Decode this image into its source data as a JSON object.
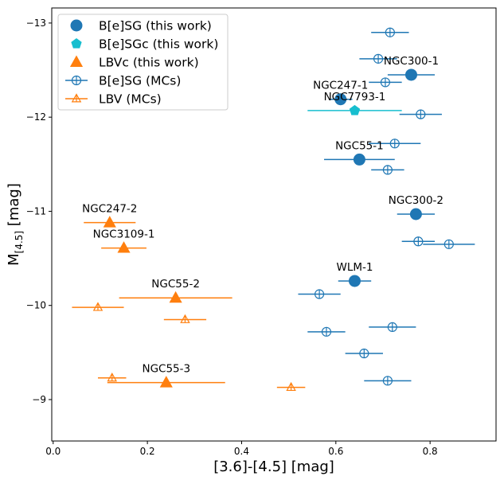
{
  "chart_data": {
    "type": "scatter",
    "xlabel": "[3.6]-[4.5] [mag]",
    "ylabel": "M",
    "ylabel_sub": "[4.5]",
    "ylabel_unit": " [mag]",
    "xlim": [
      -0.003,
      0.94
    ],
    "ylim": [
      -8.56,
      -13.16
    ],
    "xticks": [
      0.0,
      0.2,
      0.4,
      0.6,
      0.8
    ],
    "xtick_labels": [
      "0.0",
      "0.2",
      "0.4",
      "0.6",
      "0.8"
    ],
    "yticks": [
      -9,
      -10,
      -11,
      -12,
      -13
    ],
    "ytick_labels": [
      "−9",
      "−10",
      "−11",
      "−12",
      "−13"
    ],
    "grid": false,
    "legend_position": "top-left",
    "colors": {
      "blue": "#1f77b4",
      "orange": "#ff7f0e",
      "cyan": "#17becf"
    },
    "series": [
      {
        "name": "B[e]SG (this work)",
        "marker": "circle-filled",
        "color": "#1f77b4",
        "points": [
          {
            "label": "NGC300-1",
            "x": 0.76,
            "y": -12.45,
            "xerr": 0.05
          },
          {
            "label": "NGC247-1",
            "x": 0.61,
            "y": -12.19,
            "xerr": 0.025
          },
          {
            "label": "NGC55-1",
            "x": 0.65,
            "y": -11.55,
            "xerr": 0.075
          },
          {
            "label": "NGC300-2",
            "x": 0.77,
            "y": -10.97,
            "xerr": 0.04
          },
          {
            "label": "WLM-1",
            "x": 0.64,
            "y": -10.26,
            "xerr": 0.035
          }
        ]
      },
      {
        "name": "B[e]SGc (this work)",
        "marker": "pentagon-filled",
        "color": "#17becf",
        "points": [
          {
            "label": "NGC7793-1",
            "x": 0.64,
            "y": -12.07,
            "xerr": 0.1
          }
        ]
      },
      {
        "name": "LBVc (this work)",
        "marker": "triangle-filled",
        "color": "#ff7f0e",
        "points": [
          {
            "label": "NGC247-2",
            "x": 0.12,
            "y": -10.88,
            "xerr": 0.055
          },
          {
            "label": "NGC3109-1",
            "x": 0.15,
            "y": -10.61,
            "xerr": 0.048
          },
          {
            "label": "NGC55-2",
            "x": 0.26,
            "y": -10.08,
            "xerr": 0.12
          },
          {
            "label": "NGC55-3",
            "x": 0.24,
            "y": -9.18,
            "xerr": 0.125
          }
        ]
      },
      {
        "name": "B[e]SG (MCs)",
        "marker": "circle-open",
        "color": "#1f77b4",
        "points": [
          {
            "x": 0.715,
            "y": -12.9,
            "xerr": 0.04
          },
          {
            "x": 0.69,
            "y": -12.62,
            "xerr": 0.04
          },
          {
            "x": 0.705,
            "y": -12.37,
            "xerr": 0.035
          },
          {
            "x": 0.78,
            "y": -12.03,
            "xerr": 0.045
          },
          {
            "x": 0.725,
            "y": -11.72,
            "xerr": 0.055
          },
          {
            "x": 0.71,
            "y": -11.44,
            "xerr": 0.035
          },
          {
            "x": 0.775,
            "y": -10.68,
            "xerr": 0.035
          },
          {
            "x": 0.84,
            "y": -10.65,
            "xerr": 0.055
          },
          {
            "x": 0.565,
            "y": -10.12,
            "xerr": 0.045
          },
          {
            "x": 0.58,
            "y": -9.72,
            "xerr": 0.04
          },
          {
            "x": 0.72,
            "y": -9.77,
            "xerr": 0.05
          },
          {
            "x": 0.66,
            "y": -9.49,
            "xerr": 0.04
          },
          {
            "x": 0.71,
            "y": -9.2,
            "xerr": 0.05
          }
        ]
      },
      {
        "name": "LBV (MCs)",
        "marker": "triangle-open",
        "color": "#ff7f0e",
        "points": [
          {
            "x": 0.095,
            "y": -9.98,
            "xerr": 0.055
          },
          {
            "x": 0.28,
            "y": -9.85,
            "xerr": 0.045
          },
          {
            "x": 0.505,
            "y": -9.13,
            "xerr": 0.03
          },
          {
            "x": 0.125,
            "y": -9.23,
            "xerr": 0.03
          }
        ]
      }
    ]
  }
}
